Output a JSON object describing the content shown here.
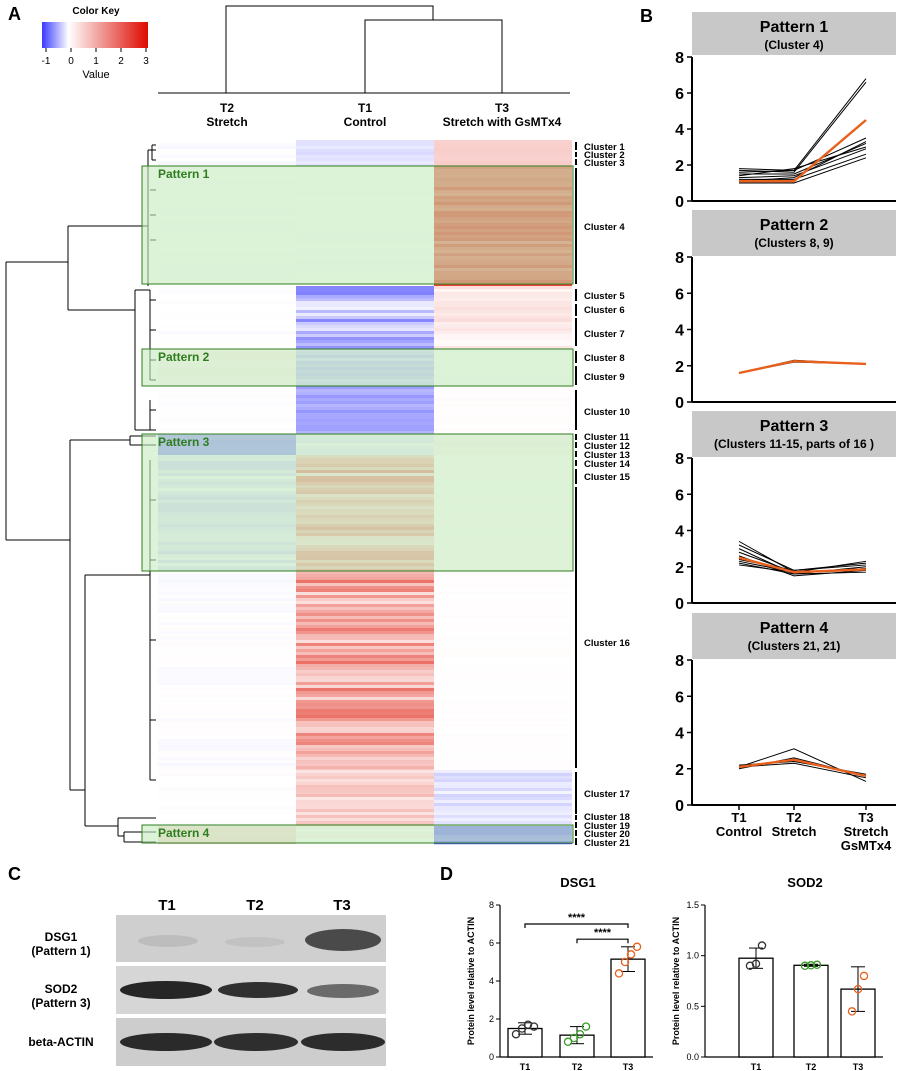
{
  "panel_letters": {
    "a": "A",
    "b": "B",
    "c": "C",
    "d": "D"
  },
  "color_key": {
    "title": "Color Key",
    "value_label": "Value",
    "ticks": [
      "-1",
      "0",
      "1",
      "2",
      "3"
    ],
    "colors": {
      "low": "#3333ff",
      "mid": "#ffffff",
      "high": "#dd1100"
    }
  },
  "heatmap": {
    "columns": [
      {
        "line1": "T2",
        "line2": "Stretch"
      },
      {
        "line1": "T1",
        "line2": "Control"
      },
      {
        "line1": "T3",
        "line2": "Stretch with GsMTx4"
      }
    ],
    "clusters": [
      "Cluster 1",
      "Cluster 2",
      "Cluster 3",
      "Cluster 4",
      "Cluster 5",
      "Cluster 6",
      "Cluster 7",
      "Cluster 8",
      "Cluster 9",
      "Cluster 10",
      "Cluster 11",
      "Cluster 12",
      "Cluster 13",
      "Cluster 14",
      "Cluster 15",
      "Cluster 16",
      "Cluster 17",
      "Cluster 18",
      "Cluster 19",
      "Cluster 20",
      "Cluster 21"
    ],
    "patterns": [
      "Pattern 1",
      "Pattern 2",
      "Pattern 3",
      "Pattern 4"
    ],
    "pattern_color": "#2e7d1e",
    "highlight_fill": "#c9ecc1"
  },
  "pattern_plots": {
    "y_ticks": [
      "0",
      "2",
      "4",
      "6",
      "8"
    ],
    "ylim": [
      0,
      8
    ],
    "x_labels": [
      {
        "line1": "T1",
        "line2": "Control",
        "line3": ""
      },
      {
        "line1": "T2",
        "line2": "Stretch",
        "line3": ""
      },
      {
        "line1": "T3",
        "line2": "Stretch",
        "line3": "GsMTx4"
      }
    ],
    "panels": [
      {
        "title": "Pattern 1",
        "subtitle": "(Cluster 4)",
        "mean": [
          1.1,
          1.1,
          4.5
        ],
        "lines": [
          [
            1.8,
            1.7,
            6.8
          ],
          [
            1.7,
            1.6,
            6.6
          ],
          [
            1.6,
            1.7,
            3.5
          ],
          [
            1.5,
            1.5,
            3.2
          ],
          [
            1.4,
            1.8,
            3.0
          ],
          [
            1.3,
            1.4,
            2.9
          ],
          [
            1.2,
            1.2,
            2.6
          ],
          [
            1.0,
            1.0,
            2.4
          ],
          [
            1.1,
            1.3,
            3.3
          ]
        ]
      },
      {
        "title": "Pattern 2",
        "subtitle": "(Clusters 8, 9)",
        "mean": [
          1.6,
          2.25,
          2.1
        ],
        "lines": [
          [
            1.6,
            2.3,
            2.1
          ],
          [
            1.6,
            2.2,
            2.1
          ]
        ]
      },
      {
        "title": "Pattern 3",
        "subtitle": "(Clusters 11-15, parts of 16 )",
        "mean": [
          2.5,
          1.7,
          1.85
        ],
        "lines": [
          [
            3.4,
            1.7,
            2.3
          ],
          [
            3.2,
            1.8,
            2.2
          ],
          [
            3.0,
            1.6,
            2.0
          ],
          [
            2.8,
            1.7,
            1.9
          ],
          [
            2.6,
            1.5,
            1.8
          ],
          [
            2.4,
            1.8,
            2.1
          ],
          [
            2.2,
            1.6,
            1.7
          ],
          [
            2.1,
            1.7,
            1.9
          ],
          [
            2.3,
            1.7,
            1.8
          ]
        ]
      },
      {
        "title": "Pattern 4",
        "subtitle": "(Clusters 21, 21)",
        "mean": [
          2.1,
          2.5,
          1.6
        ],
        "lines": [
          [
            2.1,
            3.1,
            1.3
          ],
          [
            2.2,
            2.4,
            1.7
          ],
          [
            2.1,
            2.3,
            1.5
          ],
          [
            2.0,
            2.6,
            1.6
          ]
        ]
      }
    ],
    "colors": {
      "mean": "#e8601c",
      "line": "#000000",
      "title_bg": "#c8c8c8"
    }
  },
  "western_blot": {
    "lanes": [
      "T1",
      "T2",
      "T3"
    ],
    "rows": [
      {
        "label1": "DSG1",
        "label2": "(Pattern 1)"
      },
      {
        "label1": "SOD2",
        "label2": "(Pattern 3)"
      },
      {
        "label1": "beta-ACTIN",
        "label2": ""
      }
    ]
  },
  "chart_data": [
    {
      "type": "bar",
      "title": "DSG1",
      "categories": [
        "T1",
        "T2",
        "T3"
      ],
      "values": [
        1.5,
        1.15,
        5.15
      ],
      "errors": [
        0.3,
        0.45,
        0.65
      ],
      "points": [
        [
          1.2,
          1.5,
          1.7,
          1.6
        ],
        [
          0.8,
          1.0,
          1.2,
          1.6
        ],
        [
          4.4,
          5.0,
          5.4,
          5.8
        ]
      ],
      "ylabel": "Protein level relative to ACTIN",
      "ylim": [
        0,
        8
      ],
      "y_ticks": [
        "0",
        "2",
        "4",
        "6",
        "8"
      ],
      "significance": [
        "****",
        "****"
      ],
      "point_colors": [
        "#333333",
        "#3a9a2a",
        "#e8601c"
      ]
    },
    {
      "type": "bar",
      "title": "SOD2",
      "categories": [
        "T1",
        "T2",
        "T3"
      ],
      "values": [
        0.975,
        0.905,
        0.67
      ],
      "errors": [
        0.1,
        0.01,
        0.22
      ],
      "points": [
        [
          0.9,
          0.92,
          1.1
        ],
        [
          0.9,
          0.905,
          0.91
        ],
        [
          0.45,
          0.67,
          0.8
        ]
      ],
      "ylabel": "Protein level relative to ACTIN",
      "ylim": [
        0,
        1.5
      ],
      "y_ticks": [
        "0.0",
        "0.5",
        "1.0",
        "1.5"
      ],
      "point_colors": [
        "#333333",
        "#3a9a2a",
        "#e8601c"
      ]
    }
  ]
}
